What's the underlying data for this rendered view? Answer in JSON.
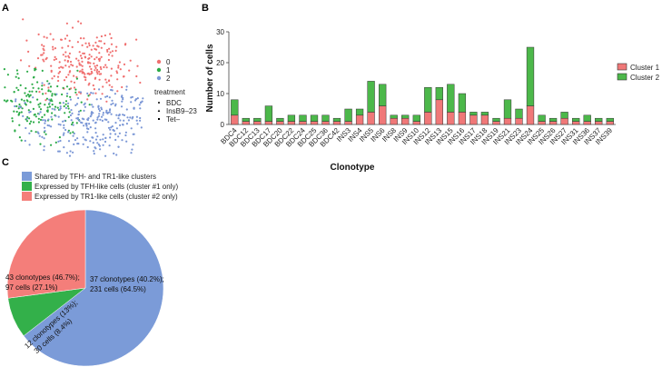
{
  "panels": {
    "a": "A",
    "b": "B",
    "c": "C"
  },
  "chart_data": [
    {
      "type": "scatter",
      "legend": {
        "cluster_title": "",
        "clusters": [
          {
            "name": "0",
            "color": "#f07070"
          },
          {
            "name": "1",
            "color": "#2bab47"
          },
          {
            "name": "2",
            "color": "#7b97d6"
          }
        ],
        "treatment_title": "treatment",
        "treatment": [
          "BDC",
          "InsB9–23",
          "Tet–"
        ]
      },
      "legend_position": "right"
    },
    {
      "type": "bar",
      "stacked": true,
      "xlabel": "Clonotype",
      "ylabel": "Number of cells",
      "ylim": [
        0,
        30
      ],
      "yticks": [
        0,
        10,
        20,
        30
      ],
      "categories": [
        "BDC4",
        "BDC12",
        "BDC13",
        "BDC17",
        "BDC20",
        "BDC22",
        "BDC24",
        "BDC25",
        "BDC36",
        "BDC42",
        "INS3",
        "INS4",
        "INS5",
        "INS6",
        "INS8",
        "INS9",
        "INS10",
        "INS12",
        "INS13",
        "INS15",
        "INS16",
        "INS17",
        "INS18",
        "INS19",
        "INS21",
        "INS23",
        "INS24",
        "INS25",
        "INS26",
        "INS27",
        "INS31",
        "INS36",
        "INS37",
        "INS39"
      ],
      "series": [
        {
          "name": "Cluster 1",
          "color": "#f07878",
          "values": [
            3,
            1,
            1,
            1,
            1,
            1,
            1,
            1,
            1,
            1,
            1,
            3,
            4,
            6,
            2,
            2,
            1,
            4,
            8,
            4,
            4,
            3,
            3,
            1,
            2,
            2,
            6,
            1,
            1,
            2,
            1,
            1,
            1,
            1
          ]
        },
        {
          "name": "Cluster 2",
          "color": "#4cb84a",
          "values": [
            5,
            1,
            1,
            5,
            1,
            2,
            2,
            2,
            2,
            1,
            4,
            2,
            10,
            7,
            1,
            1,
            2,
            8,
            4,
            9,
            6,
            1,
            1,
            1,
            6,
            3,
            19,
            2,
            1,
            2,
            1,
            2,
            1,
            1
          ]
        }
      ],
      "legend_position": "right"
    },
    {
      "type": "pie",
      "legend": [
        {
          "label": "Shared by TFH- and TR1-like clusters",
          "color": "#7b9bd8"
        },
        {
          "label": "Expressed by TFH-like cells (cluster #1 only)",
          "color": "#33b04a"
        },
        {
          "label": "Expressed by TR1-like cells (cluster #2 only)",
          "color": "#f47e7a"
        }
      ],
      "slices": [
        {
          "value": 64.5,
          "color": "#7b9bd8",
          "label_line1": "37 clonotypes (40.2%);",
          "label_line2": "231 cells (64.5%)"
        },
        {
          "value": 8.4,
          "color": "#33b04a",
          "label_line1": "12 clonotypes (13%);",
          "label_line2": "30 cells (8.4%)"
        },
        {
          "value": 27.1,
          "color": "#f47e7a",
          "label_line1": "43 clonotypes (46.7%);",
          "label_line2": "97 cells (27.1%)"
        }
      ],
      "legend_position": "top"
    }
  ]
}
